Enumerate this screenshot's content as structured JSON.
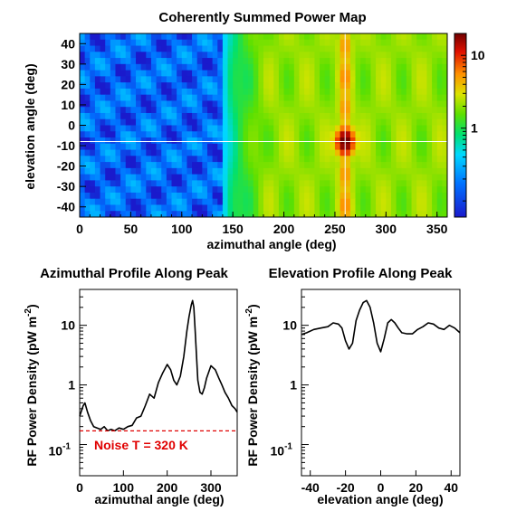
{
  "chart_data": [
    {
      "type": "heatmap",
      "title": "Coherently Summed Power Map",
      "xlabel": "azimuthal angle (deg)",
      "ylabel": "elevation angle (deg)",
      "xlim": [
        0,
        360
      ],
      "ylim": [
        -45,
        45
      ],
      "x_ticks": [
        0,
        50,
        100,
        150,
        200,
        250,
        300,
        350
      ],
      "y_ticks": [
        -40,
        -30,
        -20,
        -10,
        0,
        10,
        20,
        30,
        40
      ],
      "colorbar": {
        "scale": "log",
        "range": [
          0.06,
          20
        ],
        "tick_labels": [
          "1",
          "10"
        ],
        "tick_values": [
          1,
          10
        ]
      },
      "peak": {
        "azimuth": 260,
        "elevation": -8
      },
      "colormap_colors": [
        "#1a1acc",
        "#0070ff",
        "#00d8ff",
        "#00e070",
        "#5de000",
        "#dce300",
        "#ff9000",
        "#e01000",
        "#700000"
      ]
    },
    {
      "type": "line",
      "title": "Azimuthal Profile Along Peak",
      "xlabel": "azimuthal angle (deg)",
      "ylabel": "RF Power Density (pW m⁻²)",
      "xlim": [
        0,
        360
      ],
      "ylim": [
        0.03,
        40
      ],
      "yscale": "log",
      "x_ticks": [
        0,
        100,
        200,
        300
      ],
      "y_tick_values": [
        0.1,
        1,
        10
      ],
      "x": [
        0,
        8,
        12,
        18,
        25,
        32,
        40,
        48,
        56,
        64,
        72,
        80,
        90,
        100,
        110,
        120,
        130,
        140,
        150,
        160,
        170,
        180,
        190,
        200,
        208,
        215,
        222,
        230,
        238,
        245,
        250,
        255,
        258,
        261,
        264,
        267,
        270,
        275,
        280,
        285,
        290,
        300,
        310,
        318,
        325,
        332,
        340,
        348,
        355,
        360
      ],
      "y": [
        0.3,
        0.45,
        0.5,
        0.35,
        0.25,
        0.2,
        0.19,
        0.18,
        0.2,
        0.17,
        0.18,
        0.17,
        0.19,
        0.18,
        0.2,
        0.21,
        0.28,
        0.3,
        0.45,
        0.7,
        0.6,
        1.1,
        1.6,
        2.2,
        1.8,
        1.2,
        1.0,
        1.4,
        3.0,
        8.0,
        14.0,
        22.0,
        26.0,
        20.0,
        8.0,
        3.0,
        1.2,
        0.75,
        0.7,
        0.9,
        1.3,
        2.1,
        1.8,
        1.3,
        1.0,
        0.75,
        0.6,
        0.45,
        0.4,
        0.35
      ],
      "noise_level": 0.17,
      "annotation": "Noise T = 320 K",
      "colors": {
        "line": "#000000",
        "noise": "#e00000"
      }
    },
    {
      "type": "line",
      "title": "Elevation Profile Along Peak",
      "xlabel": "elevation angle (deg)",
      "ylabel": "RF Power Density (pW m⁻²)",
      "xlim": [
        -45,
        45
      ],
      "ylim": [
        0.03,
        40
      ],
      "yscale": "log",
      "x_ticks": [
        -40,
        -20,
        0,
        20,
        40
      ],
      "y_tick_values": [
        0.1,
        1,
        10
      ],
      "x": [
        -45,
        -42,
        -38,
        -34,
        -30,
        -27,
        -24,
        -22,
        -20,
        -18,
        -16,
        -14,
        -12,
        -10,
        -8,
        -6,
        -4,
        -2,
        0,
        2,
        4,
        6,
        8,
        10,
        12,
        15,
        18,
        21,
        24,
        27,
        30,
        33,
        36,
        39,
        42,
        45
      ],
      "y": [
        7.0,
        7.5,
        8.5,
        9.0,
        9.5,
        11.0,
        10.5,
        9.0,
        5.5,
        4.0,
        5.0,
        12.0,
        18.0,
        24.0,
        26.0,
        20.0,
        11.0,
        5.0,
        3.6,
        6.0,
        11.0,
        12.5,
        11.0,
        9.0,
        7.5,
        7.2,
        7.2,
        8.5,
        9.5,
        11.0,
        10.5,
        9.0,
        8.5,
        10.0,
        9.0,
        7.5
      ],
      "colors": {
        "line": "#000000"
      }
    }
  ]
}
